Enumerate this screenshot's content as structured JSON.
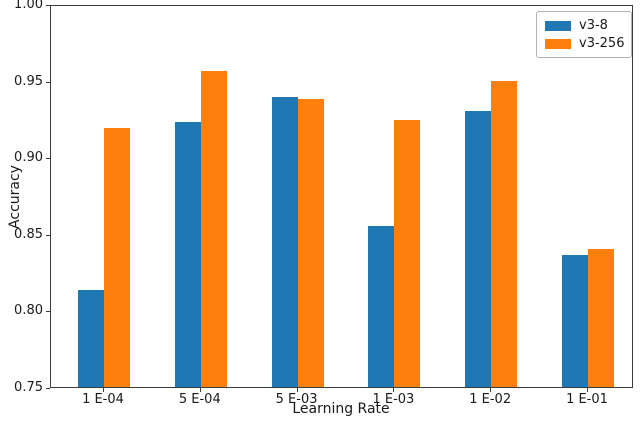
{
  "chart_data": {
    "type": "bar",
    "title": "",
    "xlabel": "Learning Rate",
    "ylabel": "Accuracy",
    "categories": [
      "1 E-04",
      "5 E-04",
      "5 E-03",
      "1 E-03",
      "1 E-02",
      "1 E-01"
    ],
    "series": [
      {
        "name": "v3-8",
        "color": "#1f77b4",
        "values": [
          0.813,
          0.923,
          0.939,
          0.855,
          0.93,
          0.836
        ]
      },
      {
        "name": "v3-256",
        "color": "#ff7f0e",
        "values": [
          0.919,
          0.956,
          0.938,
          0.924,
          0.95,
          0.84
        ]
      }
    ],
    "ylim": [
      0.75,
      1.0
    ],
    "yticks": [
      0.75,
      0.8,
      0.85,
      0.9,
      0.95,
      1.0
    ],
    "ytick_decimals": 2,
    "grid": false,
    "legend": {
      "position": "upper-right",
      "entries": [
        "v3-8",
        "v3-256"
      ]
    }
  },
  "style_colors": {
    "spine": "#3c3c3c",
    "text": "#1a1a1a",
    "legend_border": "#b3b3b3",
    "background": "#ffffff"
  }
}
